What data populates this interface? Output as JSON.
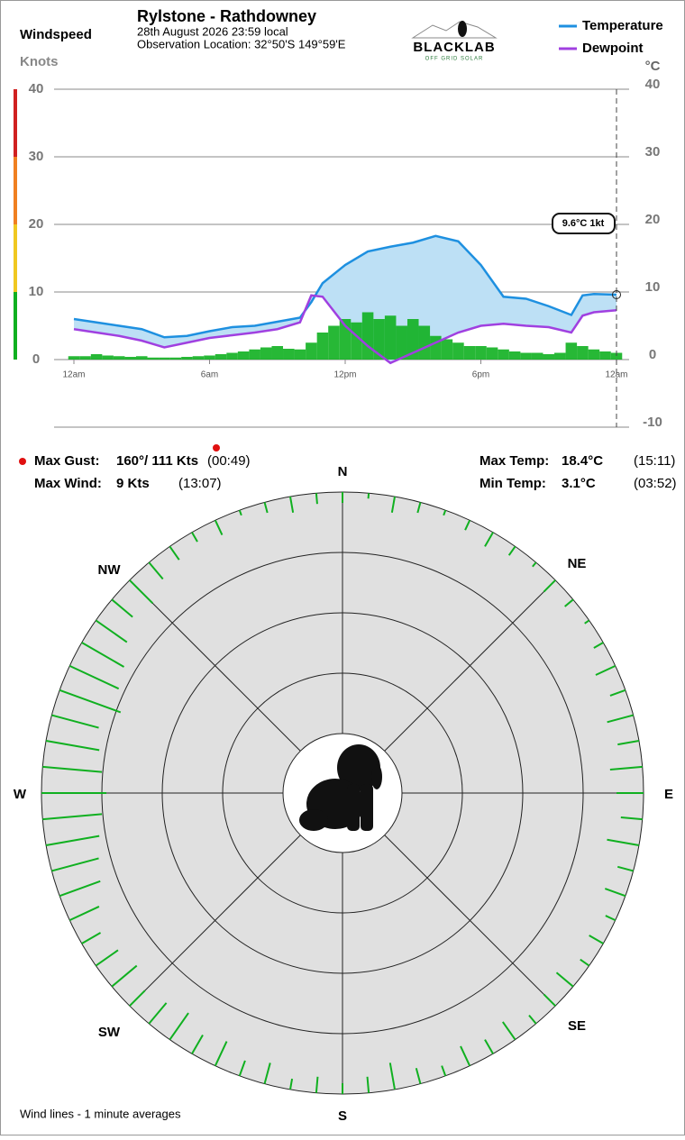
{
  "chart_data": {
    "type": "line",
    "title": "Rylstone - Rathdowney",
    "subtitle": "28th August 2026  23:59 local",
    "location": "Observation Location: 32°50'S 149°59'E",
    "logo": {
      "name": "BLACKLAB",
      "tagline": "OFF GRID SOLAR"
    },
    "ylabel": "Windspeed",
    "yunit": "Knots",
    "y2unit": "°C",
    "annotation": "9.6°C  1kt",
    "x": [
      0,
      1,
      2,
      3,
      4,
      5,
      6,
      7,
      8,
      9,
      10,
      10.5,
      11,
      12,
      13,
      14,
      15,
      16,
      17,
      18,
      19,
      20,
      21,
      22,
      22.5,
      23,
      24
    ],
    "xlim": [
      0,
      24
    ],
    "xticks": [
      {
        "value": 0,
        "label": "12am"
      },
      {
        "value": 6,
        "label": "6am"
      },
      {
        "value": 12,
        "label": "12pm"
      },
      {
        "value": 18,
        "label": "6pm"
      },
      {
        "value": 24,
        "label": "12am"
      }
    ],
    "ylim": [
      -10,
      40
    ],
    "yticks": [
      0,
      10,
      20,
      30,
      40
    ],
    "y2lim": [
      -10,
      40
    ],
    "y2ticks": [
      -10,
      0,
      10,
      20,
      30,
      40
    ],
    "grid": true,
    "series": [
      {
        "name": "Temperature",
        "color": "#1e90e0",
        "axis": "y2",
        "values": [
          6.0,
          5.5,
          5.0,
          4.5,
          3.3,
          3.5,
          4.2,
          4.8,
          5.0,
          5.6,
          6.2,
          8.5,
          11.3,
          14.0,
          16.0,
          16.7,
          17.3,
          18.3,
          17.5,
          14.0,
          9.3,
          9.0,
          7.9,
          6.6,
          9.5,
          9.7,
          9.6
        ]
      },
      {
        "name": "Dewpoint",
        "color": "#a040e0",
        "axis": "y2",
        "values": [
          4.5,
          4.0,
          3.5,
          2.8,
          1.8,
          2.5,
          3.2,
          3.6,
          4.0,
          4.5,
          5.5,
          9.5,
          9.3,
          5.0,
          2.0,
          -0.5,
          1.0,
          2.5,
          4.0,
          5.0,
          5.3,
          5.0,
          4.8,
          4.0,
          6.5,
          7.0,
          7.3
        ]
      }
    ],
    "wind": {
      "name": "Windspeed",
      "color": "#10b020",
      "x": [
        0,
        0.5,
        1,
        1.5,
        2,
        2.5,
        3,
        3.5,
        4,
        4.5,
        5,
        5.5,
        6,
        6.5,
        7,
        7.5,
        8,
        8.5,
        9,
        9.5,
        10,
        10.5,
        11,
        11.5,
        12,
        12.5,
        13,
        13.5,
        14,
        14.5,
        15,
        15.5,
        16,
        16.5,
        17,
        17.5,
        18,
        18.5,
        19,
        19.5,
        20,
        20.5,
        21,
        21.5,
        22,
        22.5,
        23,
        23.5,
        24
      ],
      "values": [
        0.5,
        0.5,
        0.8,
        0.6,
        0.5,
        0.4,
        0.5,
        0.3,
        0.3,
        0.3,
        0.4,
        0.5,
        0.6,
        0.8,
        1,
        1.2,
        1.5,
        1.8,
        2,
        1.6,
        1.5,
        2.5,
        4,
        5,
        6,
        5.5,
        7,
        6,
        6.5,
        5,
        6,
        5,
        3.5,
        3,
        2.5,
        2,
        2,
        1.8,
        1.5,
        1.2,
        1,
        1,
        0.8,
        1,
        2.5,
        2,
        1.5,
        1.2,
        1
      ]
    },
    "stats": {
      "max_gust": {
        "label": "Max Gust:",
        "value": "160°/ 111 Kts",
        "time": "(00:49)"
      },
      "max_wind": {
        "label": "Max Wind:",
        "value": "9 Kts",
        "time": "(13:07)"
      },
      "max_temp": {
        "label": "Max Temp:",
        "value": "18.4°C",
        "time": "(15:11)"
      },
      "min_temp": {
        "label": "Min Temp:",
        "value": "3.1°C",
        "time": "(03:52)"
      }
    },
    "compass": {
      "labels": [
        "N",
        "NE",
        "E",
        "SE",
        "S",
        "SW",
        "W",
        "NW"
      ],
      "directions": [
        0,
        5,
        10,
        15,
        20,
        25,
        30,
        35,
        40,
        45,
        50,
        55,
        60,
        65,
        70,
        75,
        80,
        85,
        90,
        95,
        100,
        105,
        110,
        115,
        120,
        125,
        130,
        135,
        140,
        145,
        150,
        155,
        160,
        165,
        170,
        175,
        180,
        185,
        190,
        195,
        200,
        205,
        210,
        215,
        220,
        225,
        230,
        235,
        240,
        245,
        250,
        255,
        260,
        265,
        270,
        275,
        280,
        285,
        290,
        295,
        300,
        305,
        310,
        315,
        320,
        325,
        330,
        335,
        340,
        345,
        350,
        355
      ],
      "speeds": [
        2,
        1,
        3,
        2,
        1,
        2,
        3,
        2,
        1,
        3,
        2,
        1,
        2,
        4,
        3,
        5,
        4,
        6,
        5,
        4,
        6,
        3,
        4,
        2,
        3,
        2,
        4,
        3,
        2,
        4,
        3,
        4,
        2,
        3,
        5,
        3,
        2,
        3,
        2,
        4,
        3,
        5,
        4,
        6,
        5,
        4,
        6,
        5,
        4,
        6,
        8,
        9,
        10,
        11,
        12,
        11,
        10,
        9,
        12,
        10,
        9,
        7,
        5,
        6,
        4,
        3,
        2,
        3,
        1,
        2,
        3,
        2
      ],
      "footer": "Wind lines - 1 minute averages"
    }
  }
}
